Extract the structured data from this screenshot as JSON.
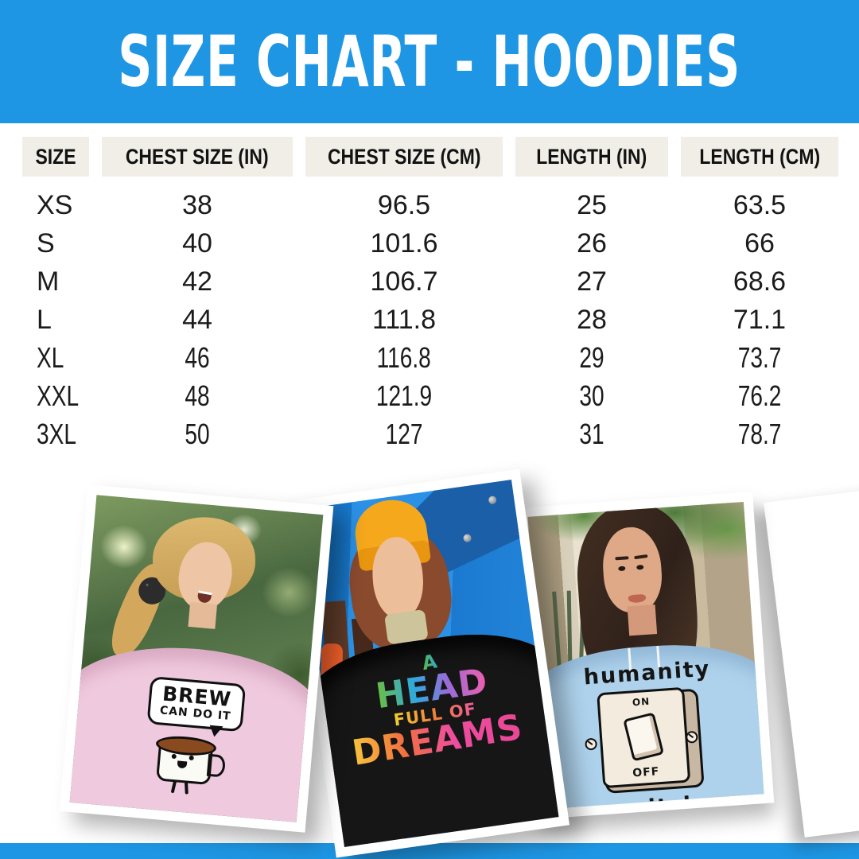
{
  "banner": {
    "title": "SIZE CHART - HOODIES",
    "bg_color": "#1E96E3",
    "text_color": "#FFFFFF"
  },
  "size_table": {
    "header_bg": "#F0EEE7",
    "columns": [
      "SIZE",
      "CHEST SIZE (IN)",
      "CHEST SIZE (CM)",
      "LENGTH (IN)",
      "LENGTH (CM)"
    ],
    "rows": [
      [
        "XS",
        "38",
        "96.5",
        "25",
        "63.5"
      ],
      [
        "S",
        "40",
        "101.6",
        "26",
        "66"
      ],
      [
        "M",
        "42",
        "106.7",
        "27",
        "68.6"
      ],
      [
        "L",
        "44",
        "111.8",
        "28",
        "71.1"
      ],
      [
        "XL",
        "46",
        "116.8",
        "29",
        "73.7"
      ],
      [
        "XXL",
        "48",
        "121.9",
        "30",
        "76.2"
      ],
      [
        "3XL",
        "50",
        "127",
        "31",
        "78.7"
      ]
    ]
  },
  "photos": {
    "pink_hoodie": {
      "hoodie_color": "#EFC9DD",
      "bubble_line1": "BREW",
      "bubble_line2": "CAN DO IT"
    },
    "black_hoodie": {
      "hoodie_color": "#161616",
      "line1": "A",
      "line2": "HEAD",
      "line3": "FULL OF",
      "line4": "DREAMS"
    },
    "blue_hoodie": {
      "hoodie_color": "#AED2EC",
      "top_text": "humanity",
      "switch_on": "ON",
      "switch_off": "OFF",
      "bottom_text": "switch"
    }
  },
  "footer": {
    "bar_color": "#1E96E3"
  }
}
